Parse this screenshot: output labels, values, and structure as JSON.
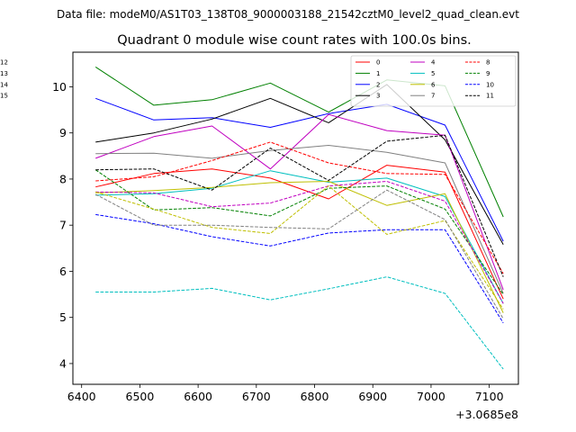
{
  "suptitle": "Data file: modeM0/AS1T03_138T08_9000003188_21542cztM0_level2_quad_clean.evt",
  "chart_data": {
    "type": "line",
    "title": "Quadrant 0 module wise count rates with 100.0s bins.",
    "xlabel": "",
    "ylabel": "",
    "x_offset_label": "+3.0685e8",
    "xlim": [
      6385,
      7150
    ],
    "ylim": [
      3.55,
      10.75
    ],
    "x_ticks": [
      6400,
      6500,
      6600,
      6700,
      6800,
      6900,
      7000,
      7100
    ],
    "y_ticks": [
      4,
      5,
      6,
      7,
      8,
      9,
      10
    ],
    "x": [
      6424,
      6524,
      6624,
      6724,
      6824,
      6924,
      7024,
      7124
    ],
    "grid": false,
    "legend_position": "upper right",
    "series": [
      {
        "name": "0",
        "color": "#ff0000",
        "style": "solid",
        "values": [
          7.83,
          8.12,
          8.22,
          8.02,
          7.57,
          8.3,
          8.15,
          5.4
        ]
      },
      {
        "name": "1",
        "color": "#008000",
        "style": "solid",
        "values": [
          10.43,
          9.6,
          9.72,
          10.08,
          9.45,
          10.15,
          10.02,
          7.18
        ]
      },
      {
        "name": "2",
        "color": "#0000ff",
        "style": "solid",
        "values": [
          9.75,
          9.28,
          9.33,
          9.12,
          9.42,
          9.62,
          9.17,
          6.65
        ]
      },
      {
        "name": "3",
        "color": "#000000",
        "style": "solid",
        "values": [
          8.8,
          9.0,
          9.3,
          9.75,
          9.22,
          10.05,
          8.85,
          6.58
        ]
      },
      {
        "name": "4",
        "color": "#c000c0",
        "style": "solid",
        "values": [
          8.45,
          8.92,
          9.15,
          8.22,
          9.4,
          9.05,
          8.95,
          5.6
        ]
      },
      {
        "name": "5",
        "color": "#00bfbf",
        "style": "solid",
        "values": [
          7.65,
          7.68,
          7.8,
          8.18,
          7.93,
          8.02,
          7.62,
          5.3
        ]
      },
      {
        "name": "6",
        "color": "#bfbf00",
        "style": "solid",
        "values": [
          7.7,
          7.75,
          7.82,
          7.92,
          7.95,
          7.43,
          7.68,
          5.1
        ]
      },
      {
        "name": "7",
        "color": "#808080",
        "style": "solid",
        "values": [
          8.55,
          8.56,
          8.45,
          8.62,
          8.73,
          8.58,
          8.35,
          5.52
        ]
      },
      {
        "name": "8",
        "color": "#ff0000",
        "style": "dashed",
        "values": [
          7.96,
          8.05,
          8.4,
          8.8,
          8.35,
          8.12,
          8.1,
          5.95
        ]
      },
      {
        "name": "9",
        "color": "#008000",
        "style": "dashed",
        "values": [
          8.2,
          7.33,
          7.38,
          7.2,
          7.8,
          7.85,
          7.35,
          5.5
        ]
      },
      {
        "name": "10",
        "color": "#0000ff",
        "style": "dashed",
        "values": [
          7.23,
          7.03,
          6.75,
          6.55,
          6.83,
          6.9,
          6.9,
          4.88
        ]
      },
      {
        "name": "11",
        "color": "#000000",
        "style": "dashed",
        "values": [
          8.2,
          8.22,
          7.76,
          8.67,
          7.97,
          8.82,
          8.95,
          5.88
        ]
      },
      {
        "name": "12",
        "color": "#c000c0",
        "style": "dashed",
        "values": [
          7.72,
          7.7,
          7.4,
          7.48,
          7.85,
          7.95,
          7.52,
          5.3
        ]
      },
      {
        "name": "13",
        "color": "#00bfbf",
        "style": "dashed",
        "values": [
          5.55,
          5.55,
          5.63,
          5.38,
          5.62,
          5.88,
          5.52,
          3.88
        ]
      },
      {
        "name": "14",
        "color": "#bfbf00",
        "style": "dashed",
        "values": [
          7.72,
          7.35,
          6.95,
          6.82,
          7.85,
          6.8,
          7.1,
          5.18
        ]
      },
      {
        "name": "15",
        "color": "#808080",
        "style": "dashed",
        "values": [
          7.67,
          7.0,
          7.0,
          6.95,
          6.92,
          7.76,
          7.12,
          4.97
        ]
      }
    ]
  }
}
